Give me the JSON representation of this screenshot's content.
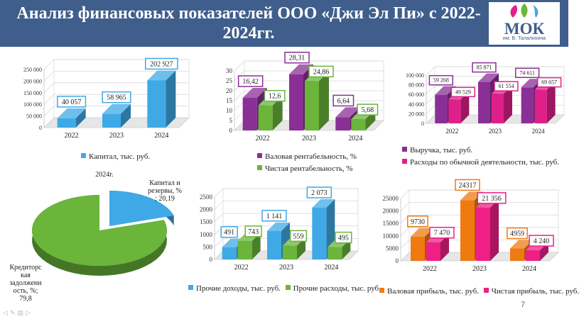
{
  "slide": {
    "title": "Анализ финансовых показателей ООО «Джи Эл Пи» с 2022-2024гг.",
    "page_number": "7",
    "nav_controls": [
      "arrow-left",
      "pen",
      "menu",
      "arrow-right"
    ]
  },
  "logo": {
    "letters": "МОК",
    "subtitle": "им. В. Талалихина"
  },
  "colors": {
    "banner": "#3f5e8c",
    "blue": "#3fa9e6",
    "green": "#6ab53a",
    "purple": "#8a2f96",
    "magenta": "#e0208a",
    "orange": "#ef7a10",
    "pink": "#ef1f86"
  },
  "chart_data": [
    {
      "id": "capital",
      "type": "bar",
      "categories": [
        "2022",
        "2023",
        "2024"
      ],
      "series": [
        {
          "name": "Капитал, тыс. руб.",
          "values": [
            40057,
            58965,
            202927
          ],
          "labels": [
            "40 057",
            "58 965",
            "202 927"
          ]
        }
      ],
      "ylim": [
        0,
        250000
      ],
      "yticks": [
        "0",
        "50 000",
        "100 000",
        "150 000",
        "200 000",
        "250 000"
      ]
    },
    {
      "id": "profitability",
      "type": "bar",
      "categories": [
        "2022",
        "2023",
        "2024"
      ],
      "series": [
        {
          "name": "Валовая рентабельность, %",
          "values": [
            16.42,
            28.31,
            6.64
          ],
          "labels": [
            "16,42",
            "28,31",
            "6,64"
          ]
        },
        {
          "name": "Чистая рентабельность, %",
          "values": [
            12.6,
            24.86,
            5.68
          ],
          "labels": [
            "12,6",
            "24,86",
            "5,68"
          ]
        }
      ],
      "ylim": [
        0,
        30
      ],
      "yticks": [
        "0",
        "5",
        "10",
        "15",
        "20",
        "25",
        "30"
      ]
    },
    {
      "id": "revenue",
      "type": "bar",
      "categories": [
        "2022",
        "2023",
        "2024"
      ],
      "series": [
        {
          "name": "Выручка, тыс. руб.",
          "values": [
            59268,
            85871,
            74611
          ],
          "labels": [
            "59 268",
            "85 871",
            "74 611"
          ]
        },
        {
          "name": "Расходы по обычной деятельности, тыс. руб.",
          "values": [
            49529,
            61554,
            69657
          ],
          "labels": [
            "49 529",
            "61 554",
            "69 657"
          ]
        }
      ],
      "ylim": [
        0,
        100000
      ],
      "yticks": [
        "0",
        "20 000",
        "40 000",
        "60 000",
        "80 000",
        "100 000"
      ]
    },
    {
      "id": "structure",
      "type": "pie",
      "title": "2024г.",
      "slices": [
        {
          "name": "Капитал и резервы, %",
          "value": 20.19,
          "label": "Капитал и резервы, %; 20,19"
        },
        {
          "name": "Кредиторская задолженность, %",
          "value": 79.8,
          "label": "Кредиторская задолженность, %; 79,8"
        }
      ]
    },
    {
      "id": "other",
      "type": "bar",
      "categories": [
        "2022",
        "2023",
        "2024"
      ],
      "series": [
        {
          "name": "Прочие доходы, тыс. руб.",
          "values": [
            491,
            1141,
            2073
          ],
          "labels": [
            "491",
            "1 141",
            "2 073"
          ]
        },
        {
          "name": "Прочие расходы, тыс. руб.",
          "values": [
            743,
            559,
            495
          ],
          "labels": [
            "743",
            "559",
            "495"
          ]
        }
      ],
      "ylim": [
        0,
        2500
      ],
      "yticks": [
        "0",
        "500",
        "1000",
        "1500",
        "2000",
        "2500"
      ]
    },
    {
      "id": "profit",
      "type": "bar",
      "categories": [
        "2022",
        "2023",
        "2024"
      ],
      "series": [
        {
          "name": "Валовая прибыль, тыс. руб.",
          "values": [
            9730,
            24317,
            4959
          ],
          "labels": [
            "9730",
            "24317",
            "4959"
          ]
        },
        {
          "name": "Чистая прибыль, тыс. руб.",
          "values": [
            7470,
            21356,
            4240
          ],
          "labels": [
            "7 470",
            "21 356",
            "4 240"
          ]
        }
      ],
      "ylim": [
        0,
        25000
      ],
      "yticks": [
        "0",
        "5000",
        "10000",
        "15000",
        "20000",
        "25000"
      ]
    }
  ]
}
